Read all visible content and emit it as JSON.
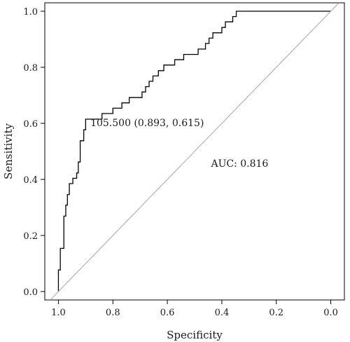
{
  "chart_data": {
    "type": "line",
    "title": "",
    "xlabel": "Specificity",
    "ylabel": "Sensitivity",
    "x_reversed": true,
    "xlim": [
      1.05,
      -0.05
    ],
    "ylim": [
      -0.03,
      1.03
    ],
    "x_ticks": [
      1.0,
      0.8,
      0.6,
      0.4,
      0.2,
      0.0
    ],
    "x_tick_labels": [
      "1.0",
      "0.8",
      "0.6",
      "0.4",
      "0.2",
      "0.0"
    ],
    "y_ticks": [
      0.0,
      0.2,
      0.4,
      0.6,
      0.8,
      1.0
    ],
    "y_tick_labels": [
      "0.0",
      "0.2",
      "0.4",
      "0.6",
      "0.8",
      "1.0"
    ],
    "grid": false,
    "series": [
      {
        "type": "step",
        "color": "#000000",
        "points": [
          [
            1.0,
            0.0
          ],
          [
            1.0,
            0.077
          ],
          [
            0.993,
            0.077
          ],
          [
            0.993,
            0.154
          ],
          [
            0.98,
            0.154
          ],
          [
            0.98,
            0.269
          ],
          [
            0.973,
            0.269
          ],
          [
            0.973,
            0.308
          ],
          [
            0.967,
            0.308
          ],
          [
            0.967,
            0.346
          ],
          [
            0.96,
            0.346
          ],
          [
            0.96,
            0.385
          ],
          [
            0.947,
            0.385
          ],
          [
            0.947,
            0.404
          ],
          [
            0.933,
            0.404
          ],
          [
            0.933,
            0.423
          ],
          [
            0.927,
            0.423
          ],
          [
            0.927,
            0.462
          ],
          [
            0.92,
            0.462
          ],
          [
            0.92,
            0.538
          ],
          [
            0.907,
            0.538
          ],
          [
            0.907,
            0.577
          ],
          [
            0.9,
            0.577
          ],
          [
            0.9,
            0.615
          ],
          [
            0.893,
            0.615
          ],
          [
            0.84,
            0.615
          ],
          [
            0.84,
            0.635
          ],
          [
            0.8,
            0.635
          ],
          [
            0.8,
            0.654
          ],
          [
            0.767,
            0.654
          ],
          [
            0.767,
            0.673
          ],
          [
            0.74,
            0.673
          ],
          [
            0.74,
            0.692
          ],
          [
            0.693,
            0.692
          ],
          [
            0.693,
            0.712
          ],
          [
            0.68,
            0.712
          ],
          [
            0.68,
            0.731
          ],
          [
            0.667,
            0.731
          ],
          [
            0.667,
            0.75
          ],
          [
            0.653,
            0.75
          ],
          [
            0.653,
            0.769
          ],
          [
            0.633,
            0.769
          ],
          [
            0.633,
            0.788
          ],
          [
            0.613,
            0.788
          ],
          [
            0.613,
            0.808
          ],
          [
            0.573,
            0.808
          ],
          [
            0.573,
            0.827
          ],
          [
            0.54,
            0.827
          ],
          [
            0.54,
            0.846
          ],
          [
            0.487,
            0.846
          ],
          [
            0.487,
            0.865
          ],
          [
            0.46,
            0.865
          ],
          [
            0.46,
            0.885
          ],
          [
            0.447,
            0.885
          ],
          [
            0.447,
            0.904
          ],
          [
            0.433,
            0.904
          ],
          [
            0.433,
            0.923
          ],
          [
            0.4,
            0.923
          ],
          [
            0.4,
            0.942
          ],
          [
            0.387,
            0.942
          ],
          [
            0.387,
            0.962
          ],
          [
            0.36,
            0.962
          ],
          [
            0.36,
            0.981
          ],
          [
            0.347,
            0.981
          ],
          [
            0.347,
            1.0
          ],
          [
            0.0,
            1.0
          ]
        ]
      },
      {
        "type": "reference",
        "color": "#a6a6a6",
        "points": [
          [
            1.05,
            -0.05
          ],
          [
            -0.03,
            1.03
          ]
        ]
      }
    ],
    "annotations": [
      {
        "text": "105.500 (0.893, 0.615)",
        "x": 0.893,
        "y": 0.615,
        "anchor": "start"
      },
      {
        "text": "AUC: 0.816",
        "x": 0.45,
        "y": 0.47,
        "anchor": "start"
      }
    ]
  }
}
